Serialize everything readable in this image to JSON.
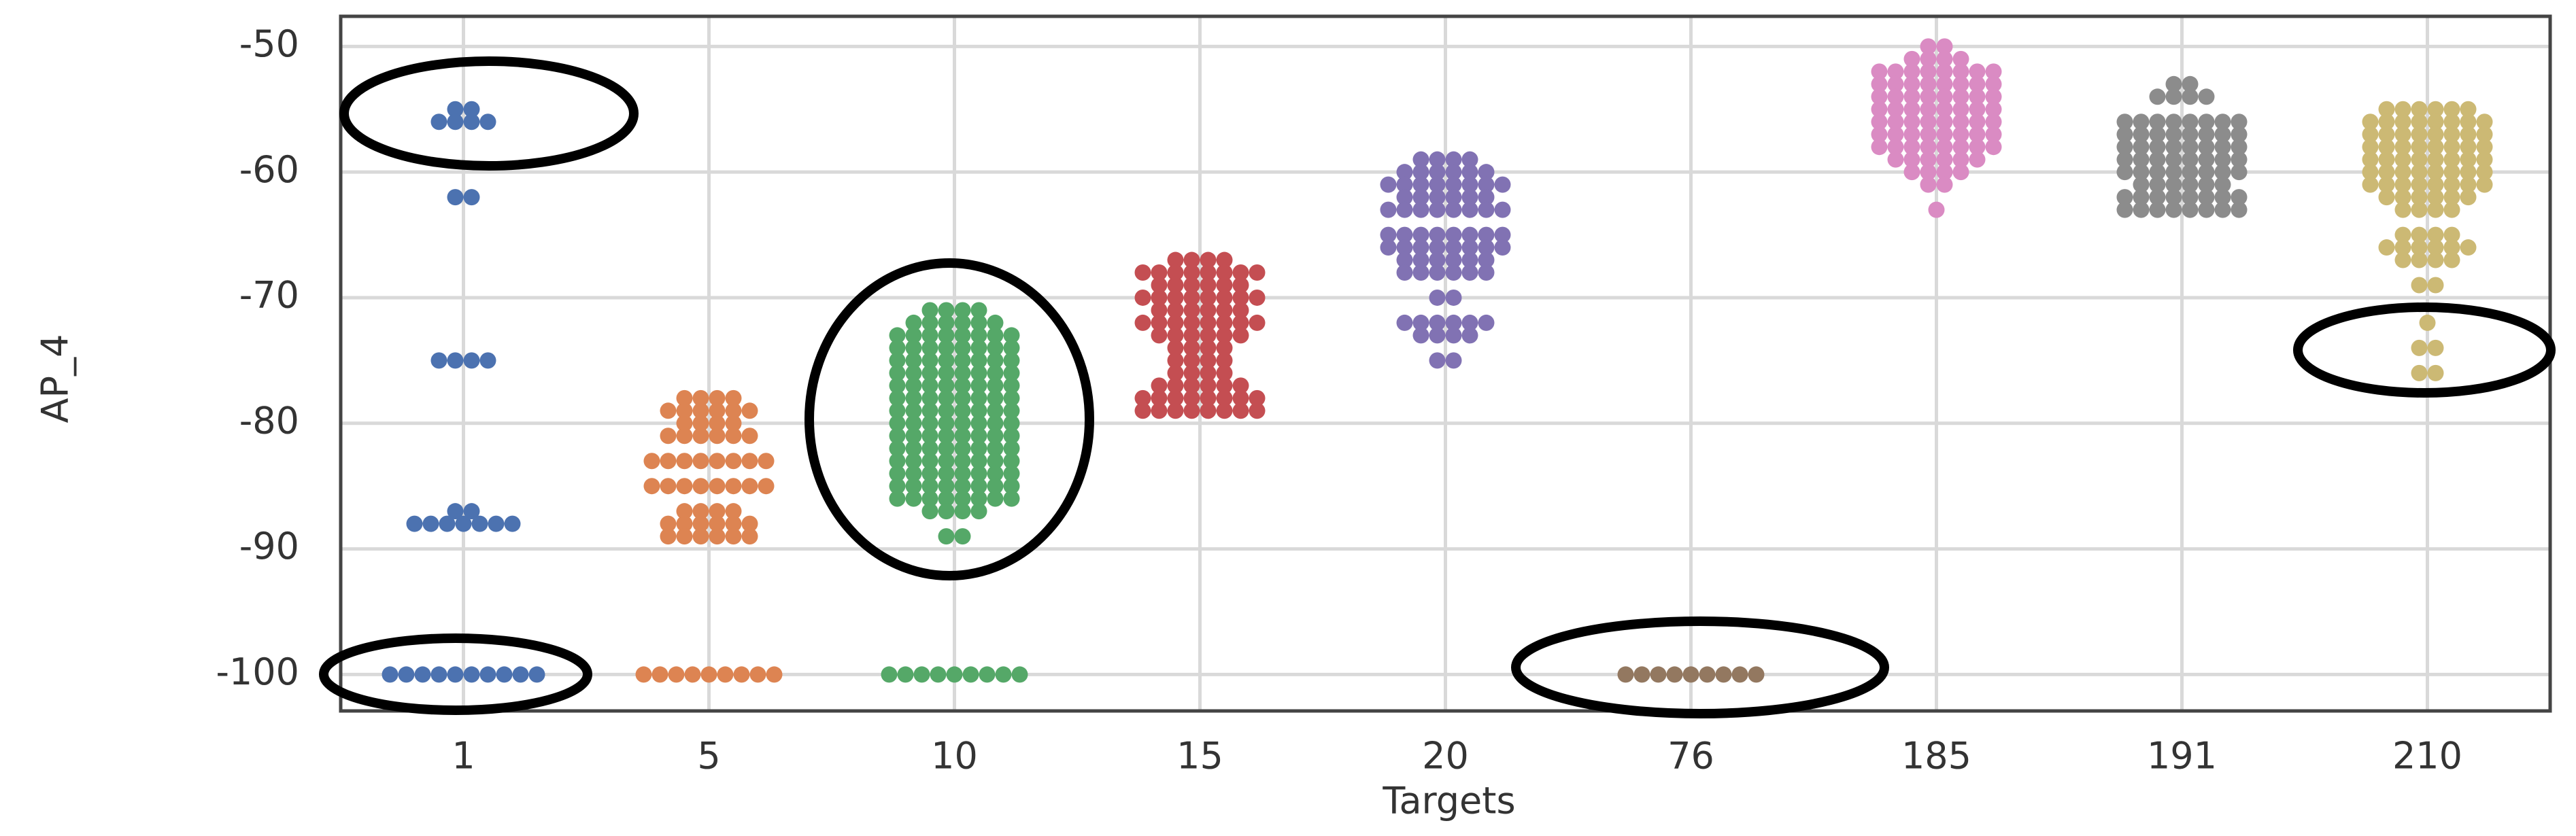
{
  "chart_data": {
    "type": "swarm",
    "xlabel": "Targets",
    "ylabel": "AP_4",
    "categories": [
      "1",
      "5",
      "10",
      "15",
      "20",
      "76",
      "185",
      "191",
      "210"
    ],
    "colors": [
      "#4c72b0",
      "#dd8452",
      "#55a868",
      "#c44e52",
      "#8172b3",
      "#937860",
      "#da8bc3",
      "#8c8c8c",
      "#ccb974"
    ],
    "values": [
      [
        -55,
        -55,
        -56,
        -56,
        -56,
        -56,
        -62,
        -62,
        -75,
        -75,
        -75,
        -75,
        -87,
        -87,
        -88,
        -88,
        -88,
        -88,
        -88,
        -88,
        -88,
        -100,
        -100,
        -100,
        -100,
        -100,
        -100,
        -100,
        -100,
        -100,
        -100
      ],
      [
        -78,
        -78,
        -78,
        -78,
        -79,
        -79,
        -79,
        -79,
        -79,
        -79,
        -80,
        -80,
        -80,
        -80,
        -81,
        -81,
        -81,
        -81,
        -81,
        -81,
        -83,
        -83,
        -83,
        -83,
        -83,
        -83,
        -83,
        -83,
        -85,
        -85,
        -85,
        -85,
        -85,
        -85,
        -85,
        -85,
        -87,
        -87,
        -87,
        -87,
        -88,
        -88,
        -88,
        -88,
        -88,
        -88,
        -89,
        -89,
        -89,
        -89,
        -89,
        -89,
        -100,
        -100,
        -100,
        -100,
        -100,
        -100,
        -100,
        -100,
        -100
      ],
      [
        -71,
        -71,
        -71,
        -71,
        -72,
        -72,
        -72,
        -72,
        -72,
        -72,
        -73,
        -73,
        -73,
        -73,
        -73,
        -73,
        -73,
        -73,
        -74,
        -74,
        -74,
        -74,
        -74,
        -74,
        -74,
        -74,
        -75,
        -75,
        -75,
        -75,
        -75,
        -75,
        -75,
        -75,
        -76,
        -76,
        -76,
        -76,
        -76,
        -76,
        -76,
        -76,
        -77,
        -77,
        -77,
        -77,
        -77,
        -77,
        -77,
        -77,
        -78,
        -78,
        -78,
        -78,
        -78,
        -78,
        -78,
        -78,
        -79,
        -79,
        -79,
        -79,
        -79,
        -79,
        -79,
        -79,
        -80,
        -80,
        -80,
        -80,
        -80,
        -80,
        -80,
        -80,
        -81,
        -81,
        -81,
        -81,
        -81,
        -81,
        -81,
        -81,
        -82,
        -82,
        -82,
        -82,
        -82,
        -82,
        -82,
        -82,
        -83,
        -83,
        -83,
        -83,
        -83,
        -83,
        -83,
        -83,
        -84,
        -84,
        -84,
        -84,
        -84,
        -84,
        -84,
        -84,
        -85,
        -85,
        -85,
        -85,
        -85,
        -85,
        -85,
        -85,
        -86,
        -86,
        -86,
        -86,
        -86,
        -86,
        -86,
        -86,
        -87,
        -87,
        -87,
        -87,
        -89,
        -89,
        -100,
        -100,
        -100,
        -100,
        -100,
        -100,
        -100,
        -100,
        -100
      ],
      [
        -67,
        -67,
        -67,
        -67,
        -68,
        -68,
        -68,
        -68,
        -68,
        -68,
        -68,
        -68,
        -69,
        -69,
        -69,
        -69,
        -69,
        -69,
        -70,
        -70,
        -70,
        -70,
        -70,
        -70,
        -70,
        -70,
        -71,
        -71,
        -71,
        -71,
        -71,
        -71,
        -72,
        -72,
        -72,
        -72,
        -72,
        -72,
        -72,
        -72,
        -73,
        -73,
        -73,
        -73,
        -73,
        -73,
        -74,
        -74,
        -74,
        -74,
        -75,
        -75,
        -75,
        -75,
        -76,
        -76,
        -76,
        -76,
        -77,
        -77,
        -77,
        -77,
        -77,
        -77,
        -78,
        -78,
        -78,
        -78,
        -78,
        -78,
        -78,
        -78,
        -79,
        -79,
        -79,
        -79,
        -79,
        -79,
        -79,
        -79
      ],
      [
        -59,
        -59,
        -59,
        -59,
        -60,
        -60,
        -60,
        -60,
        -60,
        -60,
        -61,
        -61,
        -61,
        -61,
        -61,
        -61,
        -61,
        -61,
        -62,
        -62,
        -62,
        -62,
        -62,
        -62,
        -63,
        -63,
        -63,
        -63,
        -63,
        -63,
        -63,
        -63,
        -65,
        -65,
        -65,
        -65,
        -65,
        -65,
        -65,
        -65,
        -66,
        -66,
        -66,
        -66,
        -66,
        -66,
        -66,
        -66,
        -67,
        -67,
        -67,
        -67,
        -67,
        -67,
        -68,
        -68,
        -68,
        -68,
        -68,
        -68,
        -70,
        -70,
        -72,
        -72,
        -72,
        -72,
        -72,
        -72,
        -73,
        -73,
        -73,
        -73,
        -75,
        -75
      ],
      [
        -100,
        -100,
        -100,
        -100,
        -100,
        -100,
        -100,
        -100,
        -100
      ],
      [
        -50,
        -50,
        -51,
        -51,
        -51,
        -51,
        -52,
        -52,
        -52,
        -52,
        -52,
        -52,
        -52,
        -52,
        -53,
        -53,
        -53,
        -53,
        -53,
        -53,
        -53,
        -53,
        -54,
        -54,
        -54,
        -54,
        -54,
        -54,
        -54,
        -54,
        -55,
        -55,
        -55,
        -55,
        -55,
        -55,
        -55,
        -55,
        -56,
        -56,
        -56,
        -56,
        -56,
        -56,
        -56,
        -56,
        -57,
        -57,
        -57,
        -57,
        -57,
        -57,
        -57,
        -57,
        -58,
        -58,
        -58,
        -58,
        -58,
        -58,
        -58,
        -58,
        -59,
        -59,
        -59,
        -59,
        -59,
        -59,
        -60,
        -60,
        -60,
        -60,
        -61,
        -61,
        -63
      ],
      [
        -53,
        -53,
        -54,
        -54,
        -54,
        -54,
        -56,
        -56,
        -56,
        -56,
        -56,
        -56,
        -56,
        -56,
        -57,
        -57,
        -57,
        -57,
        -57,
        -57,
        -57,
        -57,
        -58,
        -58,
        -58,
        -58,
        -58,
        -58,
        -58,
        -58,
        -59,
        -59,
        -59,
        -59,
        -59,
        -59,
        -59,
        -59,
        -60,
        -60,
        -60,
        -60,
        -60,
        -60,
        -60,
        -60,
        -61,
        -61,
        -61,
        -61,
        -61,
        -61,
        -62,
        -62,
        -62,
        -62,
        -62,
        -62,
        -62,
        -62,
        -63,
        -63,
        -63,
        -63,
        -63,
        -63,
        -63,
        -63
      ],
      [
        -55,
        -55,
        -55,
        -55,
        -55,
        -55,
        -56,
        -56,
        -56,
        -56,
        -56,
        -56,
        -56,
        -56,
        -57,
        -57,
        -57,
        -57,
        -57,
        -57,
        -57,
        -57,
        -58,
        -58,
        -58,
        -58,
        -58,
        -58,
        -58,
        -58,
        -59,
        -59,
        -59,
        -59,
        -59,
        -59,
        -59,
        -59,
        -60,
        -60,
        -60,
        -60,
        -60,
        -60,
        -60,
        -60,
        -61,
        -61,
        -61,
        -61,
        -61,
        -61,
        -61,
        -61,
        -62,
        -62,
        -62,
        -62,
        -62,
        -62,
        -63,
        -63,
        -63,
        -63,
        -65,
        -65,
        -65,
        -65,
        -66,
        -66,
        -66,
        -66,
        -66,
        -66,
        -67,
        -67,
        -67,
        -67,
        -69,
        -69,
        -72,
        -74,
        -74,
        -76,
        -76
      ]
    ],
    "ylim": [
      -102.9,
      -47.6
    ],
    "yticks": [
      -50,
      -60,
      -70,
      -80,
      -90,
      -100
    ],
    "grid": true
  }
}
